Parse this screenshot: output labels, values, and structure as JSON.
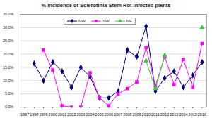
{
  "chart_data": {
    "type": "line",
    "title": "% Incidence of Sclerotinia Stem Rot infected plants",
    "x": [
      1997,
      1998,
      1999,
      2000,
      2001,
      2002,
      2003,
      2004,
      2005,
      2006,
      2007,
      2008,
      2009,
      2010,
      2011,
      2012,
      2013,
      2014,
      2015,
      2016
    ],
    "series": [
      {
        "name": "NW",
        "color": "#000080",
        "marker": "diamond",
        "values": [
          null,
          16.5,
          10,
          17,
          13.5,
          7.5,
          15,
          11.5,
          3.5,
          3.5,
          6,
          21.5,
          19,
          30.5,
          6,
          11,
          13.5,
          7.5,
          12,
          17
        ]
      },
      {
        "name": "SW",
        "color": "#ff00ff",
        "marker": "square",
        "values": [
          null,
          null,
          21.5,
          14,
          0.5,
          0,
          0,
          13,
          3.5,
          0.5,
          5,
          7,
          9.5,
          22.5,
          8,
          19,
          8.5,
          18,
          7.5,
          24
        ]
      },
      {
        "name": "NE",
        "color": "#33cc33",
        "marker": "triangle",
        "values": [
          null,
          null,
          null,
          null,
          null,
          null,
          null,
          null,
          null,
          null,
          null,
          null,
          null,
          17.5,
          7,
          19.5,
          null,
          null,
          null,
          30
        ]
      }
    ],
    "xlim": [
      1996.5,
      2016.5
    ],
    "xticks": [
      1997,
      1998,
      1999,
      2000,
      2001,
      2002,
      2003,
      2004,
      2005,
      2006,
      2007,
      2008,
      2009,
      2010,
      2011,
      2012,
      2013,
      2014,
      2015,
      2016
    ],
    "ylim": [
      0,
      35
    ],
    "yticks": [
      {
        "value": 0,
        "label": "0.0%"
      },
      {
        "value": 5,
        "label": "5.0%"
      },
      {
        "value": 10,
        "label": "10.0%"
      },
      {
        "value": 15,
        "label": "15.0%"
      },
      {
        "value": 20,
        "label": "20.0%"
      },
      {
        "value": 25,
        "label": "25.0%"
      },
      {
        "value": 30,
        "label": "30.0%"
      },
      {
        "value": 35,
        "label": "35.0%"
      }
    ],
    "grid": true,
    "legend": "top"
  }
}
